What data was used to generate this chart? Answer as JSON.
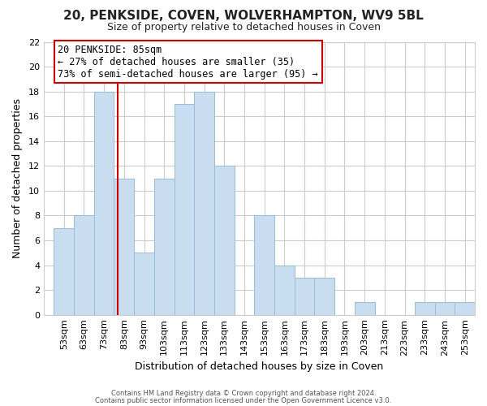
{
  "title": "20, PENKSIDE, COVEN, WOLVERHAMPTON, WV9 5BL",
  "subtitle": "Size of property relative to detached houses in Coven",
  "xlabel": "Distribution of detached houses by size in Coven",
  "ylabel": "Number of detached properties",
  "bar_color": "#c8ddf0",
  "bar_edgecolor": "#9abcd8",
  "bins": [
    "53sqm",
    "63sqm",
    "73sqm",
    "83sqm",
    "93sqm",
    "103sqm",
    "113sqm",
    "123sqm",
    "133sqm",
    "143sqm",
    "153sqm",
    "163sqm",
    "173sqm",
    "183sqm",
    "193sqm",
    "203sqm",
    "213sqm",
    "223sqm",
    "233sqm",
    "243sqm",
    "253sqm"
  ],
  "bin_edges": [
    53,
    63,
    73,
    83,
    93,
    103,
    113,
    123,
    133,
    143,
    153,
    163,
    173,
    183,
    193,
    203,
    213,
    223,
    233,
    243,
    253
  ],
  "counts": [
    7,
    8,
    18,
    11,
    5,
    11,
    17,
    18,
    12,
    0,
    8,
    4,
    3,
    3,
    0,
    1,
    0,
    0,
    1,
    1,
    1
  ],
  "vline_x": 85,
  "vline_color": "#cc0000",
  "ylim": [
    0,
    22
  ],
  "yticks": [
    0,
    2,
    4,
    6,
    8,
    10,
    12,
    14,
    16,
    18,
    20,
    22
  ],
  "annotation_title": "20 PENKSIDE: 85sqm",
  "annotation_line1": "← 27% of detached houses are smaller (35)",
  "annotation_line2": "73% of semi-detached houses are larger (95) →",
  "annotation_box_facecolor": "#ffffff",
  "annotation_box_edgecolor": "#cc0000",
  "footnote1": "Contains HM Land Registry data © Crown copyright and database right 2024.",
  "footnote2": "Contains public sector information licensed under the Open Government Licence v3.0.",
  "background_color": "#ffffff",
  "grid_color": "#cccccc",
  "title_fontsize": 11,
  "subtitle_fontsize": 9
}
